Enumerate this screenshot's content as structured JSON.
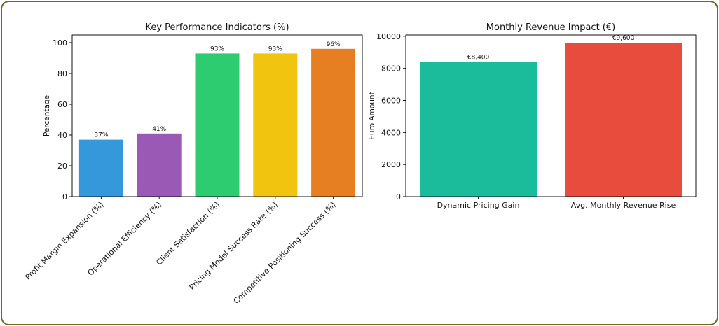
{
  "chart_data": [
    {
      "type": "bar",
      "title": "Key Performance Indicators (%)",
      "xlabel": "",
      "ylabel": "Percentage",
      "ylim": [
        0,
        105
      ],
      "yticks": [
        0,
        20,
        40,
        60,
        80,
        100
      ],
      "categories": [
        "Profit Margin Expansion (%)",
        "Operational Efficiency (%)",
        "Client Satisfaction (%)",
        "Pricing Model Success Rate (%)",
        "Competitive Positioning Success (%)"
      ],
      "values": [
        37,
        41,
        93,
        93,
        96
      ],
      "data_labels": [
        "37%",
        "41%",
        "93%",
        "93%",
        "96%"
      ],
      "colors": [
        "#3498db",
        "#9b59b6",
        "#2ecc71",
        "#f1c40f",
        "#e67e22"
      ],
      "grid": false
    },
    {
      "type": "bar",
      "title": "Monthly Revenue Impact (€)",
      "xlabel": "",
      "ylabel": "Euro Amount",
      "ylim": [
        0,
        10080
      ],
      "yticks": [
        0,
        2000,
        4000,
        6000,
        8000,
        10000
      ],
      "categories": [
        "Dynamic Pricing Gain",
        "Avg. Monthly Revenue Rise"
      ],
      "values": [
        8400,
        9600
      ],
      "data_labels": [
        "€8,400",
        "€9,600"
      ],
      "colors": [
        "#1abc9c",
        "#e74c3c"
      ],
      "grid": false
    }
  ]
}
